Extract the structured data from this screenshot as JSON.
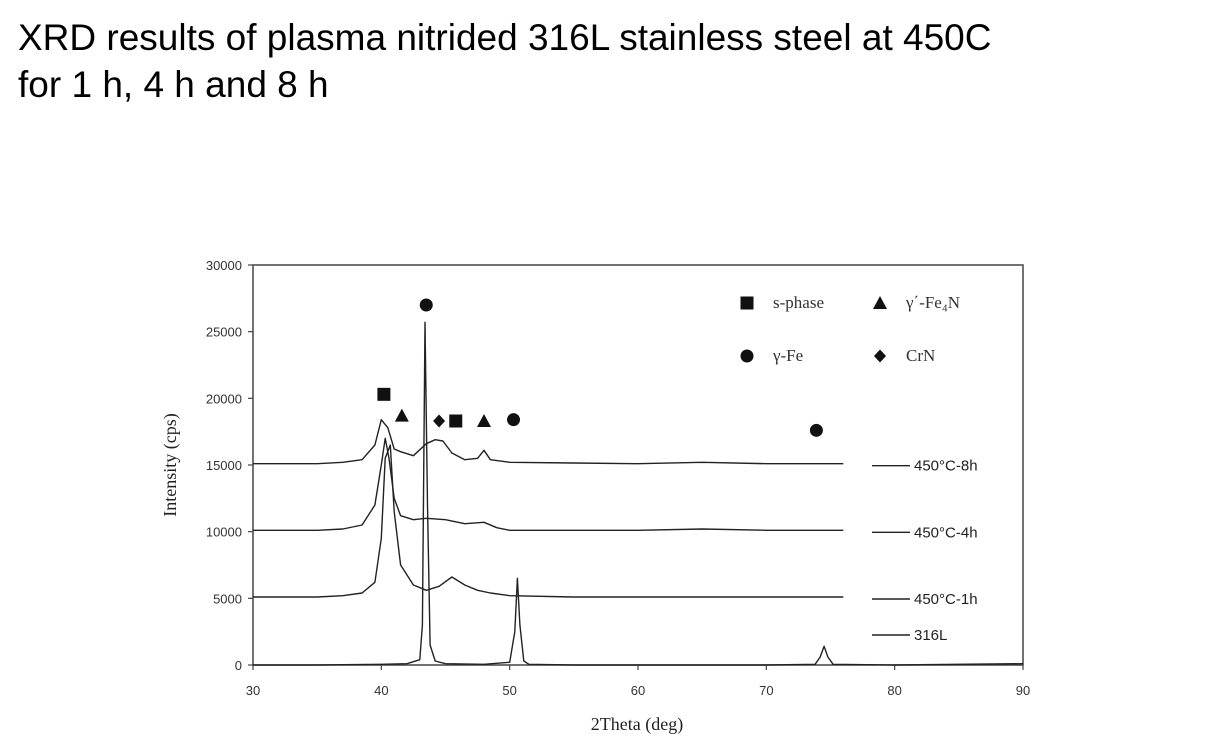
{
  "title": {
    "line1": "XRD results of plasma nitrided 316L stainless steel at 450C",
    "line2": "for 1 h, 4 h and 8 h"
  },
  "chart_data": {
    "type": "line",
    "xlabel": "2Theta (deg)",
    "ylabel": "Intensity (cps)",
    "xlim": [
      30,
      90
    ],
    "ylim": [
      0,
      30000
    ],
    "xticks": [
      "30",
      "40",
      "50",
      "60",
      "70",
      "80",
      "90"
    ],
    "yticks": [
      "0",
      "5000",
      "10000",
      "15000",
      "20000",
      "25000",
      "30000"
    ],
    "grid": false,
    "series": [
      {
        "name": "450°C-8h",
        "x": [
          30,
          35,
          37,
          38.5,
          39.5,
          40.0,
          40.5,
          41.0,
          41.5,
          42.5,
          43.5,
          44.2,
          44.8,
          45.5,
          46.5,
          47.5,
          48.0,
          48.5,
          50,
          55,
          60,
          65,
          70,
          76
        ],
        "y": [
          15100,
          15100,
          15200,
          15400,
          16500,
          18400,
          17800,
          16200,
          16000,
          15700,
          16600,
          16900,
          16800,
          15900,
          15400,
          15500,
          16100,
          15400,
          15200,
          15150,
          15100,
          15200,
          15100,
          15100
        ]
      },
      {
        "name": "450°C-4h",
        "x": [
          30,
          35,
          37,
          38.5,
          39.5,
          40.0,
          40.3,
          40.6,
          41.0,
          41.5,
          42.5,
          43.5,
          45,
          46.5,
          48,
          49,
          50,
          55,
          60,
          65,
          70,
          76
        ],
        "y": [
          10100,
          10100,
          10200,
          10500,
          12000,
          15000,
          17000,
          15500,
          12500,
          11200,
          10900,
          11000,
          10900,
          10600,
          10700,
          10300,
          10100,
          10100,
          10100,
          10200,
          10100,
          10100
        ]
      },
      {
        "name": "450°C-1h",
        "x": [
          30,
          35,
          37,
          38.5,
          39.5,
          40.0,
          40.3,
          40.7,
          41.0,
          41.5,
          42.5,
          43.5,
          44.5,
          45.5,
          46.5,
          47.5,
          48.5,
          50,
          55,
          60,
          65,
          70,
          76
        ],
        "y": [
          5100,
          5100,
          5200,
          5400,
          6200,
          9500,
          15500,
          16500,
          11500,
          7500,
          6000,
          5600,
          5900,
          6600,
          6000,
          5600,
          5400,
          5200,
          5100,
          5100,
          5100,
          5100,
          5100
        ]
      },
      {
        "name": "316L",
        "x": [
          30,
          35,
          40,
          42,
          43.0,
          43.2,
          43.4,
          43.6,
          43.8,
          44.2,
          45,
          48,
          50.0,
          50.4,
          50.6,
          50.8,
          51.1,
          51.5,
          55,
          60,
          70,
          73.8,
          74.2,
          74.5,
          74.8,
          75.2,
          80,
          90
        ],
        "y": [
          0,
          0,
          50,
          100,
          400,
          3000,
          25700,
          12000,
          1500,
          300,
          100,
          50,
          200,
          2500,
          6500,
          3000,
          300,
          50,
          0,
          0,
          0,
          50,
          600,
          1400,
          600,
          50,
          0,
          100
        ]
      }
    ],
    "legend": {
      "placement": "top-right",
      "entries": [
        {
          "marker": "square",
          "label": "s-phase"
        },
        {
          "marker": "triangle",
          "label": "γ΄-Fe₄N"
        },
        {
          "marker": "circle",
          "label": "γ-Fe"
        },
        {
          "marker": "diamond",
          "label": "CrN"
        }
      ]
    },
    "annotations": [
      {
        "marker": "circle",
        "x": 43.5,
        "y": 27000
      },
      {
        "marker": "square",
        "x": 40.2,
        "y": 20300
      },
      {
        "marker": "triangle",
        "x": 41.6,
        "y": 18700
      },
      {
        "marker": "diamond",
        "x": 44.5,
        "y": 18300
      },
      {
        "marker": "square",
        "x": 45.8,
        "y": 18300
      },
      {
        "marker": "triangle",
        "x": 48.0,
        "y": 18300
      },
      {
        "marker": "circle",
        "x": 50.3,
        "y": 18400
      },
      {
        "marker": "circle",
        "x": 73.9,
        "y": 17600
      }
    ]
  }
}
